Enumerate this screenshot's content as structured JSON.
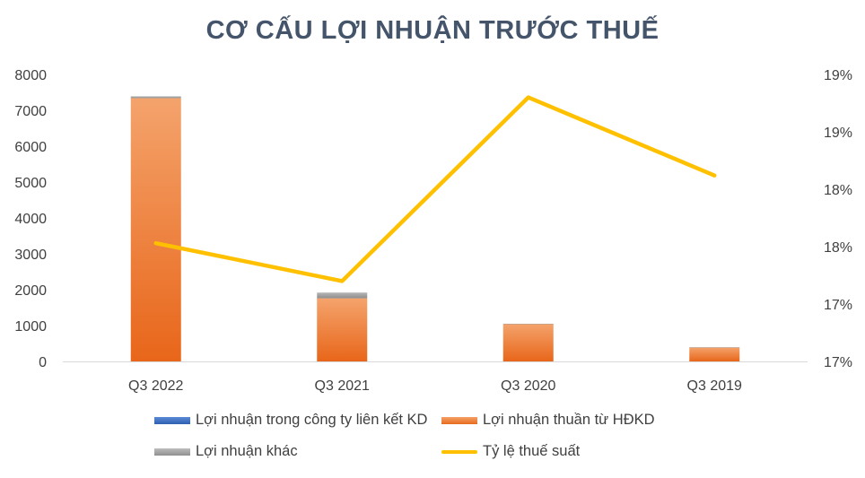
{
  "chart_data": {
    "type": "bar",
    "title": "CƠ CẤU LỢI NHUẬN TRƯỚC THUẾ",
    "categories": [
      "Q3 2022",
      "Q3 2021",
      "Q3 2020",
      "Q3 2019"
    ],
    "y_left": {
      "min": 0,
      "max": 8000,
      "ticks": [
        "0",
        "1000",
        "2000",
        "3000",
        "4000",
        "5000",
        "6000",
        "7000",
        "8000"
      ]
    },
    "y_right": {
      "min": 16.5,
      "max": 19.0,
      "ticks": [
        "17%",
        "17%",
        "18%",
        "18%",
        "19%",
        "19%"
      ]
    },
    "series": [
      {
        "name": "Lợi nhuận trong công ty liên kết KD",
        "kind": "bar",
        "stack": "profit",
        "axis": "left",
        "color": "#4472c4",
        "values": [
          0,
          0,
          0,
          0
        ]
      },
      {
        "name": "Lợi nhuận thuần từ HĐKD",
        "kind": "bar",
        "stack": "profit",
        "axis": "left",
        "color": "#ed7d31",
        "values": [
          7340,
          1760,
          1040,
          390
        ]
      },
      {
        "name": "Lợi nhuận khác",
        "kind": "bar",
        "stack": "profit",
        "axis": "left",
        "color": "#a5a5a5",
        "values": [
          50,
          160,
          10,
          5
        ]
      },
      {
        "name": "Tỷ lệ thuế suất",
        "kind": "line",
        "axis": "right",
        "color": "#ffc000",
        "values": [
          17.53,
          17.2,
          18.8,
          18.12
        ]
      }
    ],
    "legend_position": "bottom",
    "grid": false
  }
}
